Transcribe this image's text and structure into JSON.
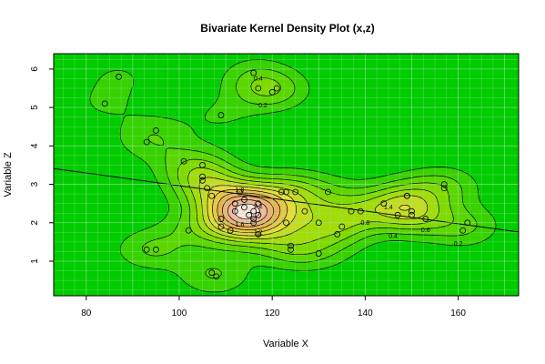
{
  "chart_data": {
    "type": "scatter",
    "subtype": "bivariate kernel density contour",
    "title": "Bivariate Kernel Density Plot (x,z)",
    "xlabel": "Variable X",
    "ylabel": "Variable Z",
    "xlim": [
      73,
      173
    ],
    "ylim": [
      0.1,
      6.4
    ],
    "xticks": [
      80,
      100,
      120,
      140,
      160
    ],
    "yticks": [
      1,
      2,
      3,
      4,
      5,
      6
    ],
    "points": [
      {
        "x": 84,
        "y": 5.1
      },
      {
        "x": 87,
        "y": 5.8
      },
      {
        "x": 93,
        "y": 4.1
      },
      {
        "x": 95,
        "y": 4.4
      },
      {
        "x": 93,
        "y": 1.3
      },
      {
        "x": 95,
        "y": 1.3
      },
      {
        "x": 101,
        "y": 3.6
      },
      {
        "x": 102,
        "y": 1.8
      },
      {
        "x": 105,
        "y": 3.5
      },
      {
        "x": 105,
        "y": 3.2
      },
      {
        "x": 105,
        "y": 3.1
      },
      {
        "x": 106,
        "y": 2.9
      },
      {
        "x": 107,
        "y": 2.7
      },
      {
        "x": 107,
        "y": 0.7
      },
      {
        "x": 108,
        "y": 0.6
      },
      {
        "x": 109,
        "y": 2.1
      },
      {
        "x": 109,
        "y": 1.9
      },
      {
        "x": 109,
        "y": 4.8
      },
      {
        "x": 111,
        "y": 1.8
      },
      {
        "x": 112,
        "y": 2.5
      },
      {
        "x": 112,
        "y": 2.3
      },
      {
        "x": 113,
        "y": 2.8
      },
      {
        "x": 114,
        "y": 2.6
      },
      {
        "x": 114,
        "y": 2.4
      },
      {
        "x": 115,
        "y": 2.2
      },
      {
        "x": 116,
        "y": 2.0
      },
      {
        "x": 116,
        "y": 2.1
      },
      {
        "x": 116,
        "y": 2.3
      },
      {
        "x": 116,
        "y": 5.9
      },
      {
        "x": 117,
        "y": 5.5
      },
      {
        "x": 117,
        "y": 1.7
      },
      {
        "x": 117,
        "y": 2.2
      },
      {
        "x": 117,
        "y": 2.5
      },
      {
        "x": 120,
        "y": 5.4
      },
      {
        "x": 121,
        "y": 5.5
      },
      {
        "x": 122,
        "y": 2.8
      },
      {
        "x": 123,
        "y": 2.8
      },
      {
        "x": 123,
        "y": 2.0
      },
      {
        "x": 124,
        "y": 1.4
      },
      {
        "x": 124,
        "y": 1.3
      },
      {
        "x": 125,
        "y": 2.8
      },
      {
        "x": 127,
        "y": 2.3
      },
      {
        "x": 130,
        "y": 2.0
      },
      {
        "x": 130,
        "y": 1.2
      },
      {
        "x": 132,
        "y": 2.8
      },
      {
        "x": 134,
        "y": 1.7
      },
      {
        "x": 135,
        "y": 1.9
      },
      {
        "x": 137,
        "y": 2.3
      },
      {
        "x": 139,
        "y": 2.3
      },
      {
        "x": 144,
        "y": 2.5
      },
      {
        "x": 147,
        "y": 2.2
      },
      {
        "x": 149,
        "y": 2.7
      },
      {
        "x": 149,
        "y": 2.7
      },
      {
        "x": 150,
        "y": 2.3
      },
      {
        "x": 150,
        "y": 2.2
      },
      {
        "x": 153,
        "y": 2.1
      },
      {
        "x": 157,
        "y": 3.0
      },
      {
        "x": 157,
        "y": 2.9
      },
      {
        "x": 161,
        "y": 1.8
      },
      {
        "x": 162,
        "y": 2.0
      }
    ],
    "regression_line": {
      "x": [
        73,
        173
      ],
      "y": [
        3.41,
        1.76
      ]
    },
    "contour_labels": [
      {
        "text": "0.2",
        "x": 118,
        "y": 5.05
      },
      {
        "text": "0.4",
        "x": 117,
        "y": 5.75
      },
      {
        "text": "0.2",
        "x": 160,
        "y": 1.45
      },
      {
        "text": "0.4",
        "x": 146,
        "y": 1.65
      },
      {
        "text": "0.6",
        "x": 153,
        "y": 1.8
      },
      {
        "text": "0.8",
        "x": 140,
        "y": 2.0
      },
      {
        "text": "1",
        "x": 117,
        "y": 1.7
      },
      {
        "text": "1.2",
        "x": 117,
        "y": 1.75
      },
      {
        "text": "1.4",
        "x": 145,
        "y": 2.4
      },
      {
        "text": "1.6",
        "x": 113,
        "y": 1.95
      },
      {
        "text": "1.8",
        "x": 113,
        "y": 2.85
      },
      {
        "text": "2.2",
        "x": 117,
        "y": 2.42
      }
    ],
    "colors": {
      "background": "#00cc00",
      "low": "#00cc00",
      "high": "#ffffff",
      "grid": "#99e699"
    },
    "grid": true
  }
}
